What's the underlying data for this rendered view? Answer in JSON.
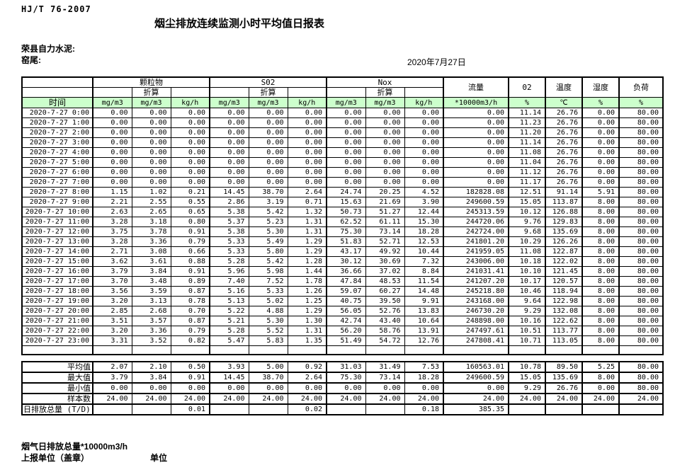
{
  "meta": {
    "standard": "HJ/T  76-2007",
    "title": "烟尘排放连续监测小时平均值日报表",
    "company": "荣县自力水泥:",
    "location": "窑尾:",
    "date": "2020年7月27日"
  },
  "colors": {
    "header_green": "#ccffcc",
    "border": "#000000"
  },
  "table": {
    "time_header": "时间",
    "groups": [
      {
        "label": "颗粒物",
        "sub": "折算"
      },
      {
        "label": "S02",
        "sub": "折算"
      },
      {
        "label": "Nox",
        "sub": "折算"
      }
    ],
    "single_cols": [
      "流量",
      "02",
      "温度",
      "湿度",
      "负荷"
    ],
    "units": [
      "mg/m3",
      "mg/m3",
      "kg/h",
      "mg/m3",
      "mg/m3",
      "kg/h",
      "mg/m3",
      "mg/m3",
      "kg/h",
      "*10000m3/h",
      "%",
      "℃",
      "%",
      "%"
    ],
    "rows": [
      {
        "time": "2020-7-27 0:00",
        "values": [
          "0.00",
          "0.00",
          "0.00",
          "0.00",
          "0.00",
          "0.00",
          "0.00",
          "0.00",
          "0.00",
          "0.00",
          "11.14",
          "26.76",
          "0.00",
          "80.00"
        ]
      },
      {
        "time": "2020-7-27 1:00",
        "values": [
          "0.00",
          "0.00",
          "0.00",
          "0.00",
          "0.00",
          "0.00",
          "0.00",
          "0.00",
          "0.00",
          "0.00",
          "11.23",
          "26.76",
          "0.00",
          "80.00"
        ]
      },
      {
        "time": "2020-7-27 2:00",
        "values": [
          "0.00",
          "0.00",
          "0.00",
          "0.00",
          "0.00",
          "0.00",
          "0.00",
          "0.00",
          "0.00",
          "0.00",
          "11.20",
          "26.76",
          "0.00",
          "80.00"
        ]
      },
      {
        "time": "2020-7-27 3:00",
        "values": [
          "0.00",
          "0.00",
          "0.00",
          "0.00",
          "0.00",
          "0.00",
          "0.00",
          "0.00",
          "0.00",
          "0.00",
          "11.14",
          "26.76",
          "0.00",
          "80.00"
        ]
      },
      {
        "time": "2020-7-27 4:00",
        "values": [
          "0.00",
          "0.00",
          "0.00",
          "0.00",
          "0.00",
          "0.00",
          "0.00",
          "0.00",
          "0.00",
          "0.00",
          "11.08",
          "26.76",
          "0.00",
          "80.00"
        ]
      },
      {
        "time": "2020-7-27 5:00",
        "values": [
          "0.00",
          "0.00",
          "0.00",
          "0.00",
          "0.00",
          "0.00",
          "0.00",
          "0.00",
          "0.00",
          "0.00",
          "11.04",
          "26.76",
          "0.00",
          "80.00"
        ]
      },
      {
        "time": "2020-7-27 6:00",
        "values": [
          "0.00",
          "0.00",
          "0.00",
          "0.00",
          "0.00",
          "0.00",
          "0.00",
          "0.00",
          "0.00",
          "0.00",
          "11.12",
          "26.76",
          "0.00",
          "80.00"
        ]
      },
      {
        "time": "2020-7-27 7:00",
        "values": [
          "0.00",
          "0.00",
          "0.00",
          "0.00",
          "0.00",
          "0.00",
          "0.00",
          "0.00",
          "0.00",
          "0.00",
          "11.17",
          "26.76",
          "0.00",
          "80.00"
        ]
      },
      {
        "time": "2020-7-27 8:00",
        "values": [
          "1.15",
          "1.02",
          "0.21",
          "14.45",
          "38.70",
          "2.64",
          "24.74",
          "20.25",
          "4.52",
          "182828.08",
          "12.51",
          "91.14",
          "5.91",
          "80.00"
        ]
      },
      {
        "time": "2020-7-27 9:00",
        "values": [
          "2.21",
          "2.55",
          "0.55",
          "2.86",
          "3.19",
          "0.71",
          "15.63",
          "21.69",
          "3.90",
          "249600.59",
          "15.05",
          "113.87",
          "8.00",
          "80.00"
        ]
      },
      {
        "time": "2020-7-27 10:00",
        "values": [
          "2.63",
          "2.65",
          "0.65",
          "5.38",
          "5.42",
          "1.32",
          "50.73",
          "51.27",
          "12.44",
          "245313.59",
          "10.12",
          "126.88",
          "8.00",
          "80.00"
        ]
      },
      {
        "time": "2020-7-27 11:00",
        "values": [
          "3.28",
          "3.18",
          "0.80",
          "5.37",
          "5.23",
          "1.31",
          "62.52",
          "61.11",
          "15.30",
          "244720.06",
          "9.76",
          "129.83",
          "8.00",
          "80.00"
        ]
      },
      {
        "time": "2020-7-27 12:00",
        "values": [
          "3.75",
          "3.78",
          "0.91",
          "5.38",
          "5.30",
          "1.31",
          "75.30",
          "73.14",
          "18.28",
          "242724.00",
          "9.68",
          "135.69",
          "8.00",
          "80.00"
        ]
      },
      {
        "time": "2020-7-27 13:00",
        "values": [
          "3.28",
          "3.36",
          "0.79",
          "5.33",
          "5.49",
          "1.29",
          "51.83",
          "52.71",
          "12.53",
          "241801.20",
          "10.29",
          "126.26",
          "8.00",
          "80.00"
        ]
      },
      {
        "time": "2020-7-27 14:00",
        "values": [
          "2.71",
          "3.08",
          "0.66",
          "5.33",
          "5.80",
          "1.29",
          "43.17",
          "49.92",
          "10.44",
          "241959.05",
          "11.08",
          "122.87",
          "8.00",
          "80.00"
        ]
      },
      {
        "time": "2020-7-27 15:00",
        "values": [
          "3.62",
          "3.61",
          "0.88",
          "5.28",
          "5.42",
          "1.28",
          "30.12",
          "30.69",
          "7.32",
          "243006.00",
          "10.18",
          "122.02",
          "8.00",
          "80.00"
        ]
      },
      {
        "time": "2020-7-27 16:00",
        "values": [
          "3.79",
          "3.84",
          "0.91",
          "5.96",
          "5.98",
          "1.44",
          "36.66",
          "37.02",
          "8.84",
          "241031.41",
          "10.10",
          "121.45",
          "8.00",
          "80.00"
        ]
      },
      {
        "time": "2020-7-27 17:00",
        "values": [
          "3.70",
          "3.48",
          "0.89",
          "7.40",
          "7.52",
          "1.78",
          "47.84",
          "48.53",
          "11.54",
          "241207.20",
          "10.17",
          "120.57",
          "8.00",
          "80.00"
        ]
      },
      {
        "time": "2020-7-27 18:00",
        "values": [
          "3.56",
          "3.59",
          "0.87",
          "5.16",
          "5.33",
          "1.26",
          "59.07",
          "60.27",
          "14.48",
          "245218.80",
          "10.46",
          "118.94",
          "8.00",
          "80.00"
        ]
      },
      {
        "time": "2020-7-27 19:00",
        "values": [
          "3.20",
          "3.13",
          "0.78",
          "5.13",
          "5.02",
          "1.25",
          "40.75",
          "39.50",
          "9.91",
          "243168.00",
          "9.64",
          "122.98",
          "8.00",
          "80.00"
        ]
      },
      {
        "time": "2020-7-27 20:00",
        "values": [
          "2.85",
          "2.68",
          "0.70",
          "5.22",
          "4.88",
          "1.29",
          "56.05",
          "52.76",
          "13.83",
          "246730.20",
          "9.29",
          "132.08",
          "8.00",
          "80.00"
        ]
      },
      {
        "time": "2020-7-27 21:00",
        "values": [
          "3.51",
          "3.57",
          "0.87",
          "5.21",
          "5.30",
          "1.30",
          "42.74",
          "43.40",
          "10.64",
          "248898.00",
          "10.16",
          "122.62",
          "8.00",
          "80.00"
        ]
      },
      {
        "time": "2020-7-27 22:00",
        "values": [
          "3.20",
          "3.36",
          "0.79",
          "5.28",
          "5.52",
          "1.31",
          "56.20",
          "58.76",
          "13.91",
          "247497.61",
          "10.51",
          "113.77",
          "8.00",
          "80.00"
        ]
      },
      {
        "time": "2020-7-27 23:00",
        "values": [
          "3.31",
          "3.52",
          "0.82",
          "5.47",
          "5.83",
          "1.35",
          "51.49",
          "54.72",
          "12.76",
          "247808.41",
          "10.71",
          "113.05",
          "8.00",
          "80.00"
        ]
      }
    ],
    "summary": [
      {
        "label": "平均值",
        "values": [
          "2.07",
          "2.10",
          "0.50",
          "3.93",
          "5.00",
          "0.92",
          "31.03",
          "31.49",
          "7.53",
          "160563.01",
          "10.78",
          "89.50",
          "5.25",
          "80.00"
        ]
      },
      {
        "label": "最大值",
        "values": [
          "3.79",
          "3.84",
          "0.91",
          "14.45",
          "38.70",
          "2.64",
          "75.30",
          "73.14",
          "18.28",
          "249600.59",
          "15.05",
          "135.69",
          "8.00",
          "80.00"
        ]
      },
      {
        "label": "最小值",
        "values": [
          "0.00",
          "0.00",
          "0.00",
          "0.00",
          "0.00",
          "0.00",
          "0.00",
          "0.00",
          "0.00",
          "0.00",
          "9.29",
          "26.76",
          "0.00",
          "80.00"
        ]
      },
      {
        "label": "样本数",
        "values": [
          "24.00",
          "24.00",
          "24.00",
          "24.00",
          "24.00",
          "24.00",
          "24.00",
          "24.00",
          "24.00",
          "24.00",
          "24.00",
          "24.00",
          "24.00",
          "24.00"
        ]
      },
      {
        "label": "日排放总量 (T/D)",
        "values": [
          "",
          "",
          "0.01",
          "",
          "",
          "0.02",
          "",
          "",
          "0.18",
          "385.35",
          "",
          "",
          "",
          ""
        ]
      }
    ]
  },
  "footer": {
    "note": "烟气日排放总量*10000m3/h",
    "report_unit": "上报单位（盖章）",
    "unit_label": "单位"
  }
}
